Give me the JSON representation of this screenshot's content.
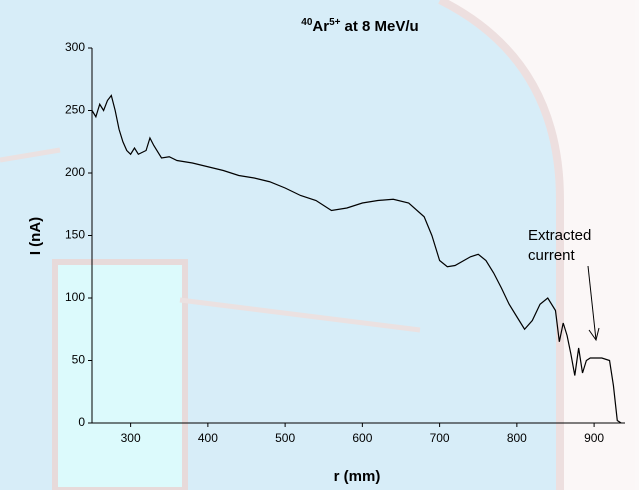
{
  "chart_data": {
    "type": "line",
    "title": {
      "mass": "40",
      "element": "Ar",
      "charge": "5+",
      "text": "at 8 MeV/u"
    },
    "x_label": "r (mm)",
    "y_label": "I (nA)",
    "annotation": [
      "Extracted",
      "current"
    ],
    "xlim": [
      250,
      940
    ],
    "xticks": [
      300,
      400,
      500,
      600,
      700,
      800,
      900
    ],
    "ylim": [
      0,
      300
    ],
    "yticks": [
      0,
      50,
      100,
      150,
      200,
      250,
      300
    ],
    "grid": false,
    "series": [
      {
        "color": "#000000",
        "x": [
          250,
          255,
          260,
          265,
          270,
          275,
          280,
          285,
          290,
          295,
          300,
          305,
          310,
          320,
          325,
          330,
          340,
          350,
          360,
          380,
          400,
          420,
          440,
          460,
          480,
          500,
          520,
          540,
          560,
          580,
          600,
          620,
          640,
          660,
          680,
          690,
          700,
          710,
          720,
          740,
          750,
          760,
          770,
          780,
          790,
          800,
          810,
          820,
          830,
          840,
          850,
          855,
          860,
          865,
          870,
          875,
          880,
          885,
          890,
          895,
          910,
          920,
          925,
          930,
          935
        ],
        "values": [
          250,
          245,
          255,
          250,
          258,
          262,
          250,
          235,
          225,
          218,
          215,
          220,
          215,
          218,
          228,
          222,
          212,
          213,
          210,
          208,
          205,
          202,
          198,
          196,
          193,
          188,
          182,
          178,
          170,
          172,
          176,
          178,
          179,
          176,
          165,
          150,
          130,
          125,
          126,
          133,
          135,
          130,
          120,
          108,
          95,
          85,
          75,
          82,
          95,
          100,
          90,
          65,
          80,
          70,
          55,
          38,
          60,
          40,
          50,
          52,
          52,
          50,
          30,
          2,
          0
        ]
      }
    ]
  }
}
